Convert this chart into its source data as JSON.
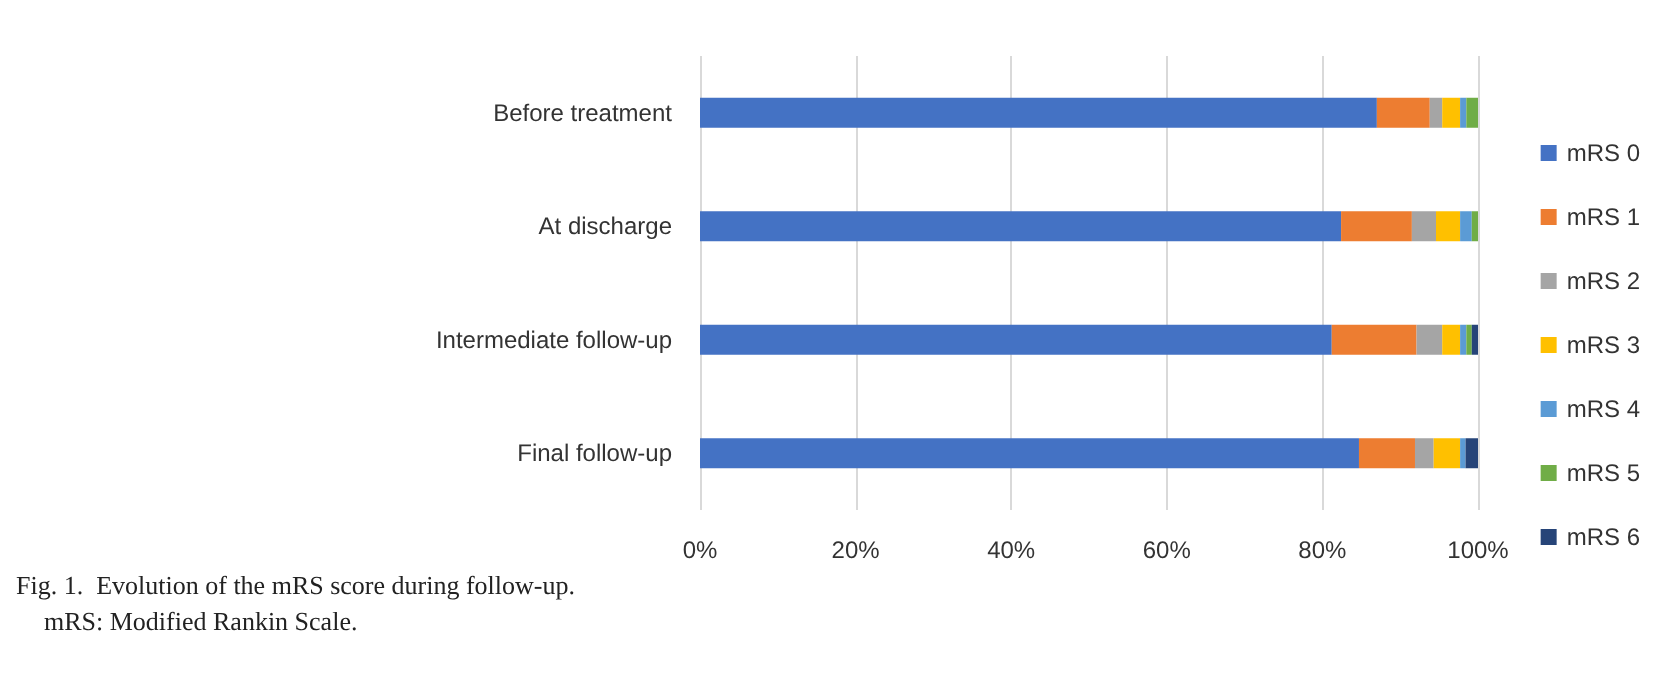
{
  "chart_data": {
    "type": "bar",
    "orientation": "horizontal",
    "stacked": true,
    "categories": [
      "Before treatment",
      "At discharge",
      "Intermediate follow-up",
      "Final follow-up"
    ],
    "series": [
      {
        "name": "mRS 0",
        "color": "#4472c4",
        "values": [
          87,
          82.4,
          81.2,
          84.7
        ]
      },
      {
        "name": "mRS 1",
        "color": "#ed7d31",
        "values": [
          6.8,
          9.1,
          10.9,
          7.2
        ]
      },
      {
        "name": "mRS 2",
        "color": "#a5a5a5",
        "values": [
          1.6,
          3.1,
          3.3,
          2.4
        ]
      },
      {
        "name": "mRS 3",
        "color": "#ffc000",
        "values": [
          2.3,
          3.1,
          2.3,
          3.4
        ]
      },
      {
        "name": "mRS 4",
        "color": "#5b9bd5",
        "values": [
          0.8,
          1.5,
          0.8,
          0.7
        ]
      },
      {
        "name": "mRS 5",
        "color": "#70ad47",
        "values": [
          1.5,
          0.8,
          0.7,
          0
        ]
      },
      {
        "name": "mRS 6",
        "color": "#264478",
        "values": [
          0,
          0,
          0.8,
          1.6
        ]
      }
    ],
    "xlim": [
      0,
      100
    ],
    "xticks": [
      {
        "value": 0,
        "label": "0%"
      },
      {
        "value": 20,
        "label": "20%"
      },
      {
        "value": 40,
        "label": "40%"
      },
      {
        "value": 60,
        "label": "60%"
      },
      {
        "value": 80,
        "label": "80%"
      },
      {
        "value": 100,
        "label": "100%"
      }
    ],
    "grid": "x",
    "legend": "right",
    "annotations": [
      "Fig. 1.  Evolution of the mRS score during follow-up.",
      "mRS: Modified Rankin Scale."
    ]
  }
}
